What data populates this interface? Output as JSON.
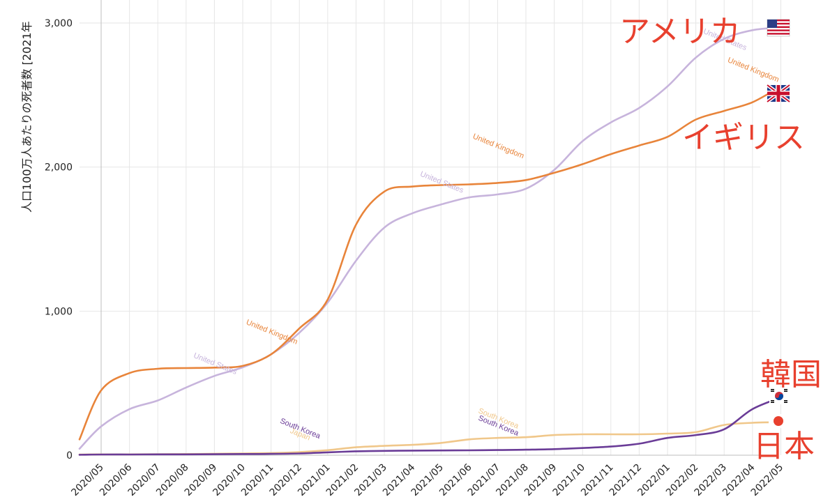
{
  "chart_data": {
    "type": "line",
    "ylabel": "人口100万人あたりの死者数 [2021年",
    "ylim": [
      0,
      3000
    ],
    "y_ticks": [
      {
        "value": 0,
        "label": "0"
      },
      {
        "value": 1000,
        "label": "1,000"
      },
      {
        "value": 2000,
        "label": "2,000"
      },
      {
        "value": 3000,
        "label": "3,000"
      }
    ],
    "x_ticks": [
      "2020/05",
      "2020/06",
      "2020/07",
      "2020/08",
      "2020/09",
      "2020/10",
      "2020/11",
      "2020/12",
      "2021/01",
      "2021/02",
      "2021/03",
      "2021/04",
      "2021/05",
      "2021/06",
      "2021/07",
      "2021/08",
      "2021/09",
      "2021/10",
      "2021/11",
      "2021/12",
      "2022/01",
      "2022/02",
      "2022/03",
      "2022/04",
      "2022/05"
    ],
    "grid": true,
    "series": [
      {
        "name": "United States",
        "color": "#c7b4dc",
        "points": [
          [
            "2020/04",
            45
          ],
          [
            "2020/05",
            200
          ],
          [
            "2020/06",
            320
          ],
          [
            "2020/07",
            380
          ],
          [
            "2020/08",
            470
          ],
          [
            "2020/09",
            550
          ],
          [
            "2020/10",
            610
          ],
          [
            "2020/11",
            700
          ],
          [
            "2020/12",
            850
          ],
          [
            "2021/01",
            1060
          ],
          [
            "2021/02",
            1350
          ],
          [
            "2021/03",
            1580
          ],
          [
            "2021/04",
            1680
          ],
          [
            "2021/05",
            1740
          ],
          [
            "2021/06",
            1790
          ],
          [
            "2021/07",
            1810
          ],
          [
            "2021/08",
            1850
          ],
          [
            "2021/09",
            1980
          ],
          [
            "2021/10",
            2180
          ],
          [
            "2021/11",
            2310
          ],
          [
            "2021/12",
            2410
          ],
          [
            "2022/01",
            2560
          ],
          [
            "2022/02",
            2760
          ],
          [
            "2022/03",
            2890
          ],
          [
            "2022/04",
            2950
          ],
          [
            "2022/05",
            2970
          ]
        ],
        "labels": [
          {
            "text": "United States",
            "at": "2020/09",
            "value": 620
          },
          {
            "text": "United States",
            "at": "2021/05",
            "value": 1880
          },
          {
            "text": "United States",
            "at": "2022/03",
            "value": 2870
          }
        ]
      },
      {
        "name": "United Kingdom",
        "color": "#e8843a",
        "points": [
          [
            "2020/04",
            110
          ],
          [
            "2020/05",
            450
          ],
          [
            "2020/06",
            570
          ],
          [
            "2020/07",
            600
          ],
          [
            "2020/08",
            605
          ],
          [
            "2020/09",
            608
          ],
          [
            "2020/10",
            620
          ],
          [
            "2020/11",
            700
          ],
          [
            "2020/12",
            880
          ],
          [
            "2021/01",
            1080
          ],
          [
            "2021/02",
            1600
          ],
          [
            "2021/03",
            1830
          ],
          [
            "2021/04",
            1865
          ],
          [
            "2021/05",
            1875
          ],
          [
            "2021/06",
            1880
          ],
          [
            "2021/07",
            1890
          ],
          [
            "2021/08",
            1910
          ],
          [
            "2021/09",
            1960
          ],
          [
            "2021/10",
            2020
          ],
          [
            "2021/11",
            2090
          ],
          [
            "2021/12",
            2150
          ],
          [
            "2022/01",
            2210
          ],
          [
            "2022/02",
            2330
          ],
          [
            "2022/03",
            2390
          ],
          [
            "2022/04",
            2450
          ],
          [
            "2022/05",
            2560
          ]
        ],
        "labels": [
          {
            "text": "United Kingdom",
            "at": "2020/11",
            "value": 840
          },
          {
            "text": "United Kingdom",
            "at": "2021/07",
            "value": 2130
          },
          {
            "text": "United Kingdom",
            "at": "2022/04",
            "value": 2660
          }
        ]
      },
      {
        "name": "South Korea",
        "color": "#6a3c97",
        "points": [
          [
            "2020/04",
            3
          ],
          [
            "2020/05",
            5
          ],
          [
            "2020/06",
            5
          ],
          [
            "2020/07",
            6
          ],
          [
            "2020/08",
            6
          ],
          [
            "2020/09",
            7
          ],
          [
            "2020/10",
            8
          ],
          [
            "2020/11",
            9
          ],
          [
            "2020/12",
            12
          ],
          [
            "2021/01",
            20
          ],
          [
            "2021/02",
            27
          ],
          [
            "2021/03",
            30
          ],
          [
            "2021/04",
            32
          ],
          [
            "2021/05",
            33
          ],
          [
            "2021/06",
            34
          ],
          [
            "2021/07",
            36
          ],
          [
            "2021/08",
            38
          ],
          [
            "2021/09",
            42
          ],
          [
            "2021/10",
            50
          ],
          [
            "2021/11",
            60
          ],
          [
            "2021/12",
            80
          ],
          [
            "2022/01",
            120
          ],
          [
            "2022/02",
            140
          ],
          [
            "2022/03",
            180
          ],
          [
            "2022/04",
            320
          ],
          [
            "2022/05",
            400
          ]
        ],
        "labels": [
          {
            "text": "South Korea",
            "at": "2020/12",
            "value": 170
          },
          {
            "text": "South Korea",
            "at": "2021/07",
            "value": 190
          }
        ]
      },
      {
        "name": "Japan",
        "color": "#f0c78a",
        "points": [
          [
            "2020/04",
            5
          ],
          [
            "2020/05",
            6
          ],
          [
            "2020/06",
            6
          ],
          [
            "2020/07",
            7
          ],
          [
            "2020/08",
            8
          ],
          [
            "2020/09",
            10
          ],
          [
            "2020/10",
            12
          ],
          [
            "2020/11",
            15
          ],
          [
            "2020/12",
            22
          ],
          [
            "2021/01",
            35
          ],
          [
            "2021/02",
            55
          ],
          [
            "2021/03",
            65
          ],
          [
            "2021/04",
            72
          ],
          [
            "2021/05",
            85
          ],
          [
            "2021/06",
            110
          ],
          [
            "2021/07",
            120
          ],
          [
            "2021/08",
            125
          ],
          [
            "2021/09",
            140
          ],
          [
            "2021/10",
            145
          ],
          [
            "2021/11",
            145
          ],
          [
            "2021/12",
            145
          ],
          [
            "2022/01",
            150
          ],
          [
            "2022/02",
            160
          ],
          [
            "2022/03",
            210
          ],
          [
            "2022/04",
            225
          ],
          [
            "2022/05",
            230
          ]
        ],
        "labels": [
          {
            "text": "Japan",
            "at": "2020/12",
            "value": 130
          },
          {
            "text": "South Korea",
            "at": "2021/07",
            "value": 240
          }
        ]
      }
    ]
  },
  "annotations": [
    {
      "id": "usa",
      "text": "アメリカ",
      "flag": "us-flag-icon"
    },
    {
      "id": "uk",
      "text": "イギリス",
      "flag": "uk-flag-icon"
    },
    {
      "id": "korea",
      "text": "韓国",
      "flag": "korea-flag-icon"
    },
    {
      "id": "japan",
      "text": "日本",
      "flag": "japan-flag-icon"
    }
  ],
  "colors": {
    "annotation": "#e8402e",
    "grid": "#e6e6e6"
  }
}
